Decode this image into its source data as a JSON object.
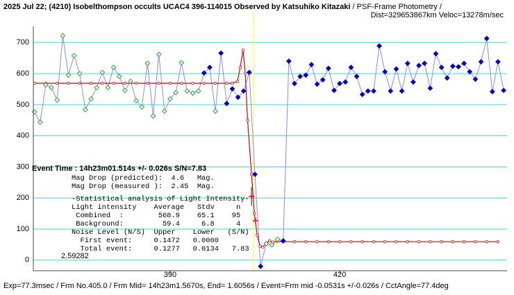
{
  "chart_data": {
    "type": "line",
    "title": "2025 Jul 22; (4210) Isobelthompson occults UCAC4 396-114015 Observed by Katsuhiko Kitazaki",
    "subtitle": "/ PSF-Frame Photometry /",
    "info": "Dist=329653867km Veloc=13278m/sec",
    "annotation": "Event Time : 14h23m01.514s  +/- 0.026s  S/N=7.83",
    "stats_text": [
      "Mag Drop (predicted):  4.6   Mag.",
      "Mag Drop (measured ):  2.45  Mag.",
      "-Statistical analysis of Light Intensity-",
      "Light intensity    Average   Stdv     n",
      " Combined  :        568.9    65.1    95",
      " Background:         59.4     6.8     4",
      "Noise Level (N/S)  Upper    Lower   (S/N)",
      "  First event:     0.1472   0.0000",
      "  Total event:     0.1277   0.0134   7.83"
    ],
    "corner_label": "2.59282",
    "footer": "Exp=77.3msec / Frm No.405.0 / Frm Mid= 14h23m1.5670s, End= 1.6056s / Event=Frm mid -0.0531s +/-0.026s / CctAngle=77.4deg",
    "xlim": [
      365.8,
      449.6
    ],
    "ylim": [
      -34,
      752
    ],
    "xticks": [
      390,
      420
    ],
    "yticks": [
      0,
      100,
      200,
      300,
      400,
      500,
      600,
      700
    ],
    "grid": true,
    "grid_color": "#33dddd",
    "line_color": "#8888ff",
    "event_x": 404.76,
    "event_color": "#ffff66",
    "x": [
      366,
      367,
      368,
      369,
      370,
      371,
      372,
      373,
      374,
      375,
      376,
      377,
      378,
      379,
      380,
      381,
      382,
      383,
      384,
      385,
      386,
      387,
      388,
      389,
      390,
      391,
      392,
      393,
      394,
      395,
      396,
      397,
      398,
      399,
      400,
      401,
      402,
      403,
      404,
      405,
      406,
      407,
      408,
      409,
      410,
      411,
      412,
      413,
      414,
      415,
      416,
      417,
      418,
      419,
      420,
      421,
      422,
      423,
      424,
      425,
      426,
      427,
      428,
      429,
      430,
      431,
      432,
      433,
      434,
      435,
      436,
      437,
      438,
      439,
      440,
      441,
      442,
      443,
      444,
      445,
      446,
      447,
      448,
      449
    ],
    "series": [
      {
        "color": "#22aa22",
        "values": [
          477,
          444,
          564,
          555,
          515,
          722,
          595,
          658,
          600,
          484,
          519,
          555,
          604,
          555,
          620,
          591,
          546,
          575,
          513,
          493,
          633,
          464,
          662,
          479,
          519,
          539,
          635,
          544,
          537,
          544,
          null,
          null,
          479,
          null,
          null,
          null,
          null,
          null,
          null,
          null,
          null,
          53,
          49,
          67,
          null,
          null,
          null,
          null,
          null,
          null,
          null,
          null,
          null,
          null,
          null,
          null,
          null,
          null,
          null,
          null,
          null,
          null,
          null,
          null,
          null,
          null,
          null,
          null,
          null,
          null,
          null,
          null,
          null,
          null,
          null,
          null,
          null,
          null,
          null,
          null,
          null,
          null,
          null,
          null
        ]
      },
      {
        "color": "#0000cc",
        "values": [
          null,
          null,
          null,
          null,
          null,
          null,
          null,
          null,
          null,
          null,
          null,
          null,
          null,
          null,
          null,
          null,
          null,
          null,
          null,
          null,
          null,
          null,
          null,
          null,
          null,
          null,
          null,
          null,
          null,
          null,
          602,
          620,
          null,
          666,
          504,
          551,
          524,
          544,
          604,
          276,
          -20,
          null,
          null,
          null,
          62,
          640,
          568,
          591,
          595,
          629,
          566,
          580,
          617,
          546,
          568,
          573,
          620,
          591,
          533,
          544,
          544,
          689,
          606,
          544,
          615,
          544,
          633,
          573,
          626,
          633,
          553,
          664,
          620,
          586,
          624,
          622,
          633,
          606,
          582,
          638,
          713,
          542,
          638,
          546
        ]
      }
    ],
    "model": {
      "color": "#dd0000",
      "x": [
        366,
        368,
        370,
        372,
        374,
        376,
        378,
        380,
        382,
        384,
        386,
        388,
        390,
        392,
        394,
        396,
        398,
        400,
        401,
        401.9,
        402.4,
        402.9,
        403.3,
        403.7,
        404.4,
        404.9,
        405.4,
        405.9,
        406.4,
        407,
        407.6,
        408.2,
        409,
        410,
        412,
        414,
        416,
        418,
        420,
        422,
        424,
        426,
        428,
        430,
        432,
        434,
        436,
        438,
        440,
        442,
        444,
        446,
        448
      ],
      "values": [
        568.9,
        568.9,
        568.9,
        568.9,
        568.9,
        568.9,
        568.9,
        568.9,
        568.9,
        568.9,
        568.9,
        568.9,
        568.9,
        568.9,
        568.9,
        568.9,
        568.9,
        568.9,
        568.9,
        575,
        620,
        675,
        600,
        450,
        276,
        150,
        80,
        45,
        42,
        55,
        62,
        58,
        60,
        59.4,
        59.4,
        59.4,
        59.4,
        59.4,
        59.4,
        59.4,
        59.4,
        59.4,
        59.4,
        59.4,
        59.4,
        59.4,
        59.4,
        59.4,
        59.4,
        59.4,
        59.4,
        59.4,
        59.4
      ]
    },
    "event_points": {
      "color": "#ff0000",
      "error_color": "#3333aa",
      "x": [
        404.4,
        405.1
      ],
      "values": [
        205,
        127
      ],
      "yerr": [
        30,
        8
      ]
    }
  }
}
